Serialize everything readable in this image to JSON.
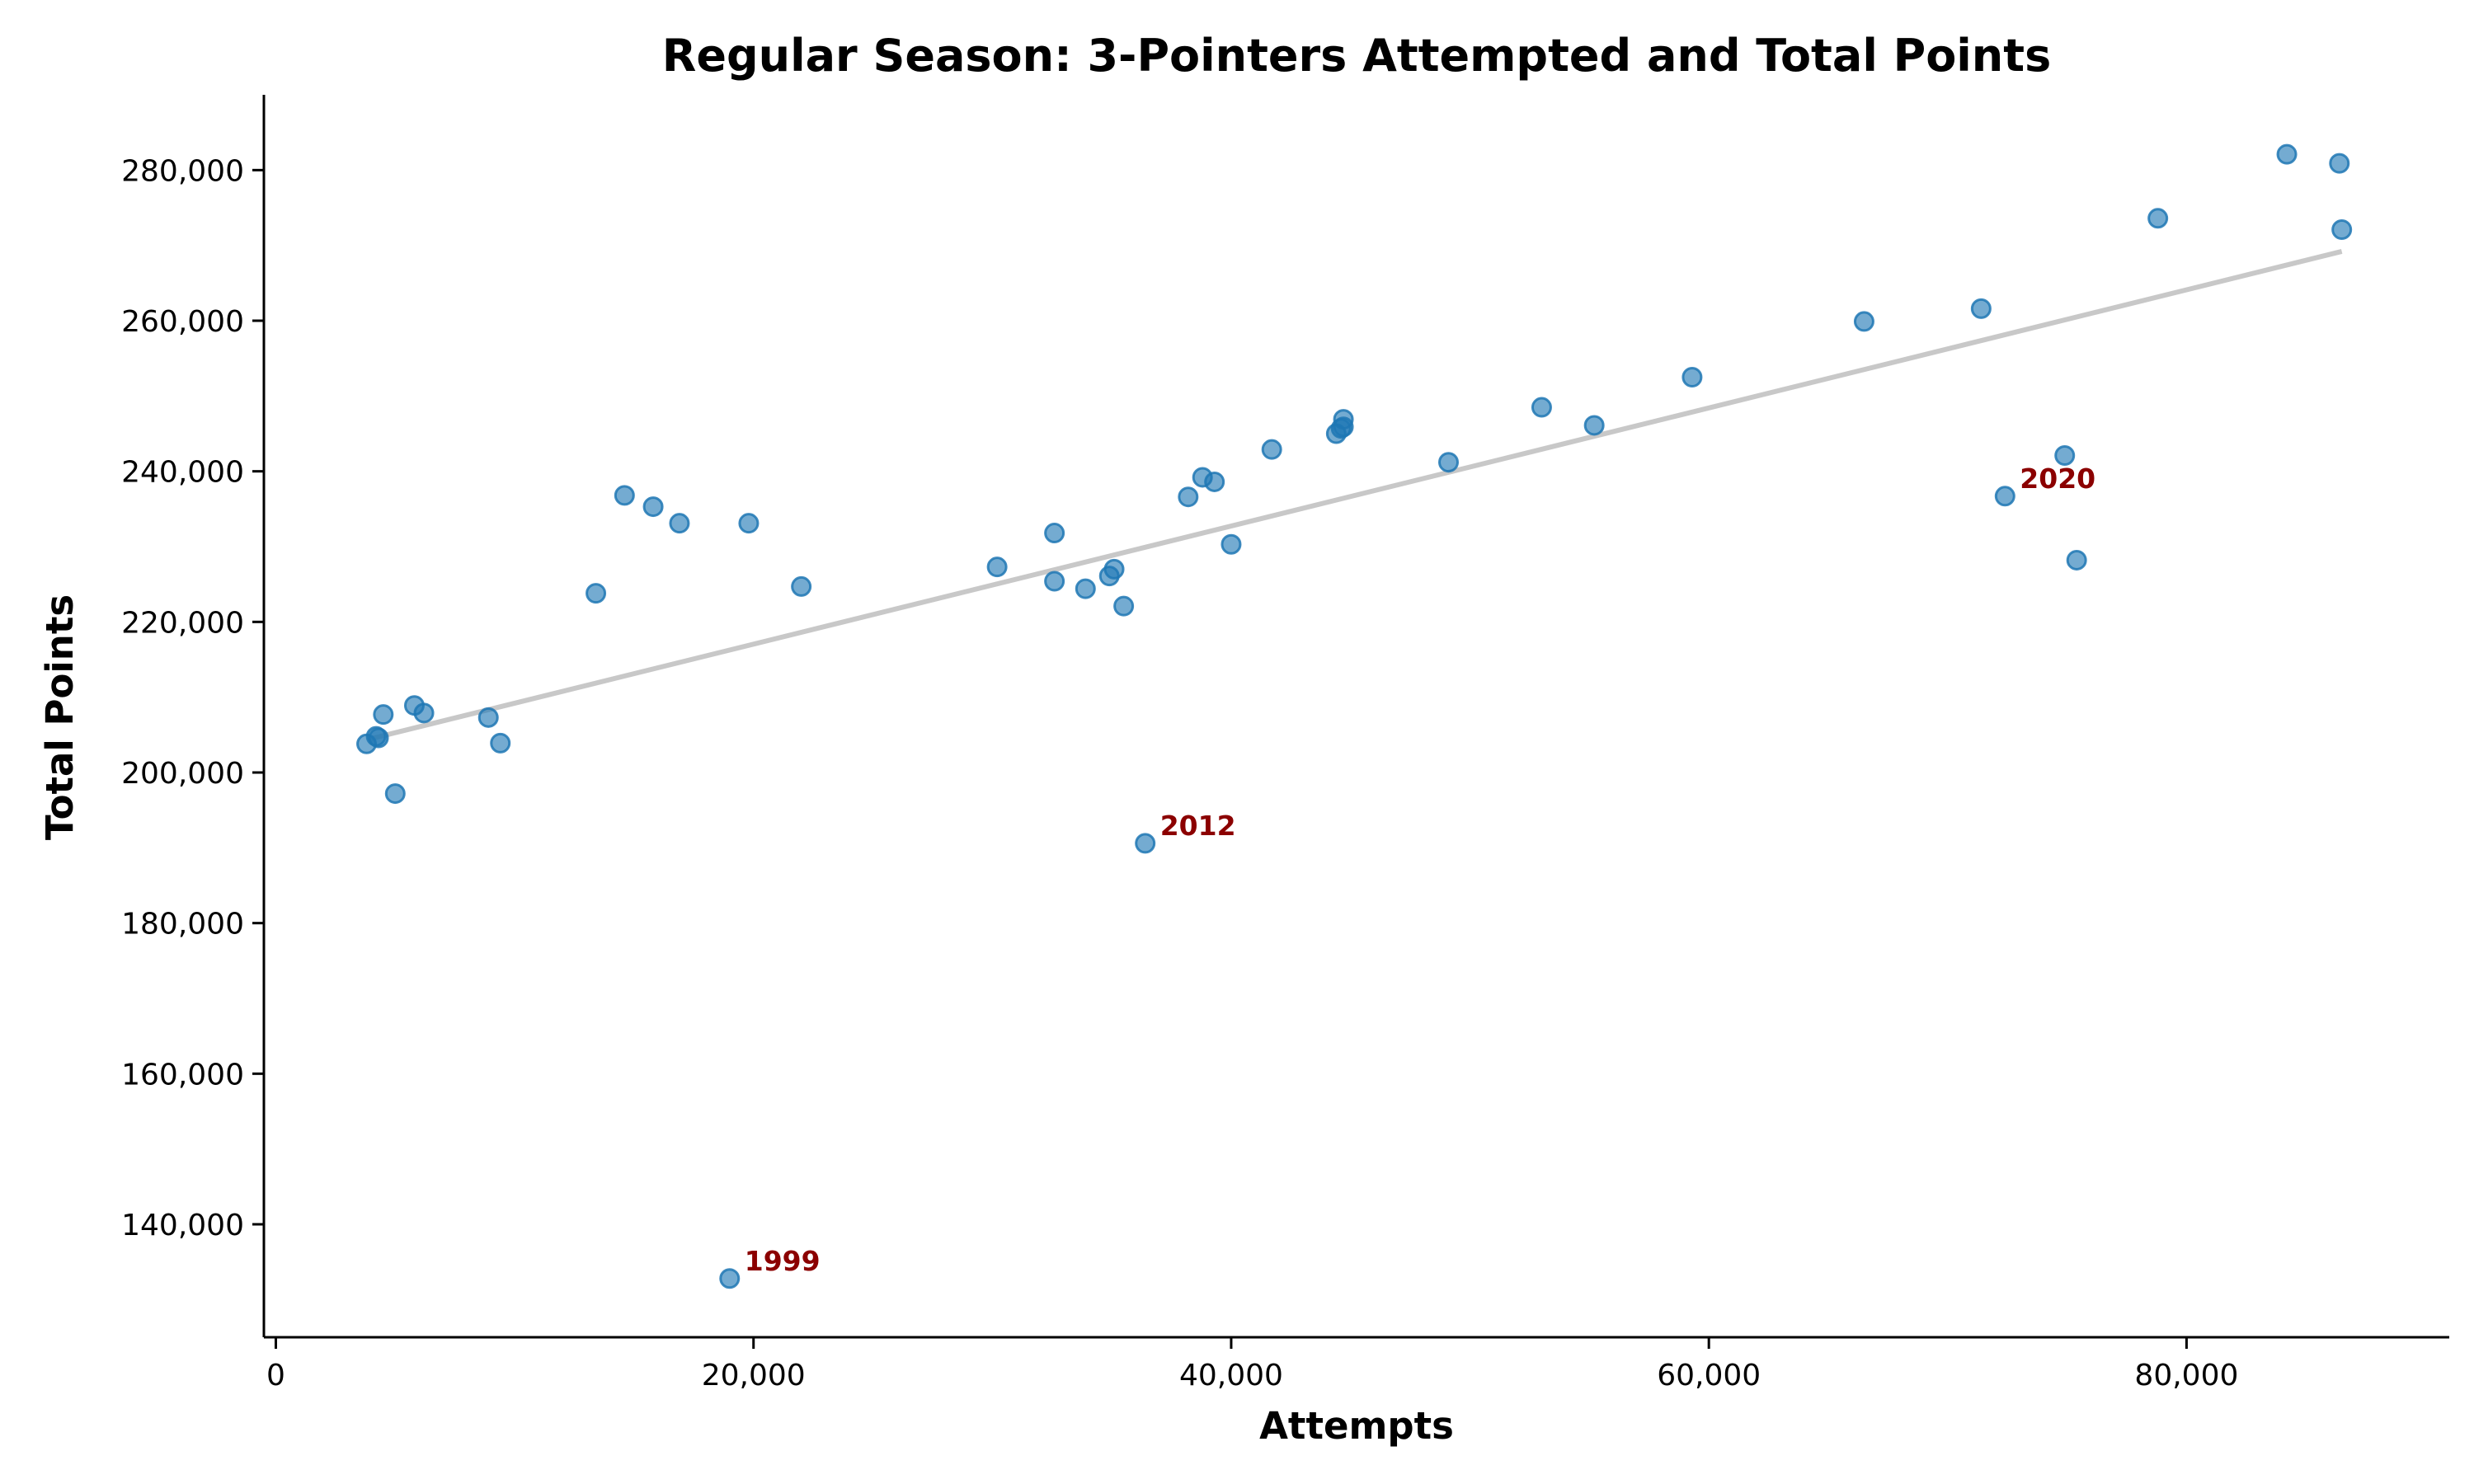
{
  "chart_data": {
    "type": "scatter",
    "title": "Regular Season: 3-Pointers Attempted and Total Points",
    "xlabel": "Attempts",
    "ylabel": "Total Points",
    "xlim": [
      -500,
      91000
    ],
    "ylim": [
      125000,
      290000
    ],
    "xticks": [
      0,
      20000,
      40000,
      60000,
      80000
    ],
    "xtick_labels": [
      "0",
      "20,000",
      "40,000",
      "60,000",
      "80,000"
    ],
    "yticks": [
      140000,
      160000,
      180000,
      200000,
      220000,
      240000,
      260000,
      280000
    ],
    "ytick_labels": [
      "140,000",
      "160,000",
      "180,000",
      "200,000",
      "220,000",
      "240,000",
      "260,000",
      "280,000"
    ],
    "grid": false,
    "point_color": "#1f77b4",
    "trend_color": "#c8c8c8",
    "annotation_color": "#8b0000",
    "trendline": {
      "x": [
        4000,
        86500
      ],
      "y": [
        204500,
        269200
      ]
    },
    "points": [
      {
        "x": 3800,
        "y": 203800
      },
      {
        "x": 4200,
        "y": 204800
      },
      {
        "x": 4300,
        "y": 204600
      },
      {
        "x": 4500,
        "y": 207700
      },
      {
        "x": 5000,
        "y": 197200
      },
      {
        "x": 5800,
        "y": 208900
      },
      {
        "x": 6200,
        "y": 207900
      },
      {
        "x": 8900,
        "y": 207300
      },
      {
        "x": 9400,
        "y": 203900
      },
      {
        "x": 13400,
        "y": 223800
      },
      {
        "x": 14600,
        "y": 236800
      },
      {
        "x": 15800,
        "y": 235300
      },
      {
        "x": 16900,
        "y": 233100
      },
      {
        "x": 19000,
        "y": 132800
      },
      {
        "x": 19800,
        "y": 233100
      },
      {
        "x": 22000,
        "y": 224700
      },
      {
        "x": 30200,
        "y": 227300
      },
      {
        "x": 32600,
        "y": 231800
      },
      {
        "x": 32600,
        "y": 225400
      },
      {
        "x": 33900,
        "y": 224400
      },
      {
        "x": 34900,
        "y": 226100
      },
      {
        "x": 35100,
        "y": 227000
      },
      {
        "x": 35500,
        "y": 222100
      },
      {
        "x": 36400,
        "y": 190600
      },
      {
        "x": 38200,
        "y": 236600
      },
      {
        "x": 38800,
        "y": 239200
      },
      {
        "x": 39300,
        "y": 238600
      },
      {
        "x": 40000,
        "y": 230300
      },
      {
        "x": 41700,
        "y": 242900
      },
      {
        "x": 44400,
        "y": 245000
      },
      {
        "x": 44600,
        "y": 245700
      },
      {
        "x": 44700,
        "y": 245900
      },
      {
        "x": 44700,
        "y": 246900
      },
      {
        "x": 49100,
        "y": 241200
      },
      {
        "x": 53000,
        "y": 248500
      },
      {
        "x": 55200,
        "y": 246100
      },
      {
        "x": 59300,
        "y": 252500
      },
      {
        "x": 66500,
        "y": 259900
      },
      {
        "x": 71400,
        "y": 261600
      },
      {
        "x": 72400,
        "y": 236700
      },
      {
        "x": 74900,
        "y": 242100
      },
      {
        "x": 75400,
        "y": 228200
      },
      {
        "x": 78800,
        "y": 273600
      },
      {
        "x": 84200,
        "y": 282100
      },
      {
        "x": 86400,
        "y": 280900
      },
      {
        "x": 86500,
        "y": 272100
      }
    ],
    "annotations": [
      {
        "text": "1999",
        "x": 19000,
        "y": 132800
      },
      {
        "text": "2012",
        "x": 36400,
        "y": 190600
      },
      {
        "text": "2020",
        "x": 72400,
        "y": 236700
      }
    ]
  }
}
